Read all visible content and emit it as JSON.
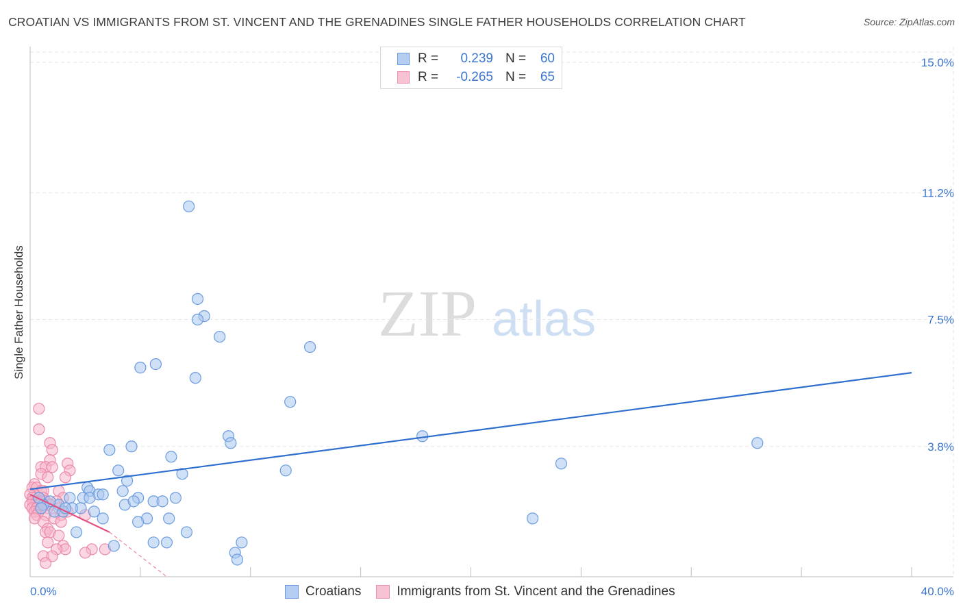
{
  "title": "CROATIAN VS IMMIGRANTS FROM ST. VINCENT AND THE GRENADINES SINGLE FATHER HOUSEHOLDS CORRELATION CHART",
  "source": "Source: ZipAtlas.com",
  "watermark": {
    "part1": "ZIP",
    "part2": "atlas"
  },
  "legend": {
    "rows": [
      {
        "r_label": "R =",
        "r_value": "0.239",
        "n_label": "N =",
        "n_value": "60"
      },
      {
        "r_label": "R =",
        "r_value": "-0.265",
        "n_label": "N =",
        "n_value": "65"
      }
    ]
  },
  "colors": {
    "blue_fill": "#a9c6ee",
    "blue_stroke": "#6a9be0",
    "blue_line": "#2e6fcf",
    "pink_fill": "#f6b7ca",
    "pink_stroke": "#ea88a8",
    "pink_line": "#e2507f",
    "grid": "#e6e6e6",
    "tick_text": "#3a74cf"
  },
  "chart_data": {
    "type": "scatter",
    "title": "CROATIAN VS IMMIGRANTS FROM ST. VINCENT AND THE GRENADINES SINGLE FATHER HOUSEHOLDS CORRELATION CHART",
    "xlabel": "",
    "ylabel": "Single Father Households",
    "xlim": [
      0,
      40
    ],
    "ylim": [
      0,
      15.3
    ],
    "x_tick_labels": [
      "0.0%",
      "40.0%"
    ],
    "y_ticks": [
      {
        "value": 3.8,
        "label": "3.8%"
      },
      {
        "value": 7.5,
        "label": "7.5%"
      },
      {
        "value": 11.2,
        "label": "11.2%"
      },
      {
        "value": 15.0,
        "label": "15.0%"
      }
    ],
    "series": [
      {
        "name": "Croatians",
        "color": "#a9c6ee",
        "r": 0.239,
        "n": 60,
        "trend": {
          "x0": 0,
          "y0": 2.55,
          "x1": 40,
          "y1": 5.95
        },
        "points": [
          [
            7.2,
            10.8
          ],
          [
            7.6,
            8.1
          ],
          [
            7.9,
            7.6
          ],
          [
            7.6,
            7.5
          ],
          [
            8.6,
            7.0
          ],
          [
            12.7,
            6.7
          ],
          [
            5.7,
            6.2
          ],
          [
            5.0,
            6.1
          ],
          [
            7.5,
            5.8
          ],
          [
            11.8,
            5.1
          ],
          [
            9.0,
            4.1
          ],
          [
            17.8,
            4.1
          ],
          [
            33.0,
            3.9
          ],
          [
            9.1,
            3.9
          ],
          [
            4.6,
            3.8
          ],
          [
            3.6,
            3.7
          ],
          [
            6.4,
            3.5
          ],
          [
            24.1,
            3.3
          ],
          [
            4.0,
            3.1
          ],
          [
            11.6,
            3.1
          ],
          [
            6.9,
            3.0
          ],
          [
            4.4,
            2.8
          ],
          [
            2.6,
            2.6
          ],
          [
            2.7,
            2.5
          ],
          [
            3.1,
            2.4
          ],
          [
            3.3,
            2.4
          ],
          [
            4.2,
            2.5
          ],
          [
            2.4,
            2.3
          ],
          [
            1.8,
            2.3
          ],
          [
            5.6,
            2.2
          ],
          [
            4.9,
            2.3
          ],
          [
            6.6,
            2.3
          ],
          [
            6.0,
            2.2
          ],
          [
            4.3,
            2.1
          ],
          [
            2.3,
            2.0
          ],
          [
            1.9,
            2.0
          ],
          [
            1.3,
            2.1
          ],
          [
            0.9,
            2.2
          ],
          [
            1.1,
            1.9
          ],
          [
            1.5,
            1.9
          ],
          [
            0.6,
            2.1
          ],
          [
            0.5,
            2.0
          ],
          [
            2.9,
            1.9
          ],
          [
            3.3,
            1.7
          ],
          [
            5.3,
            1.7
          ],
          [
            6.3,
            1.7
          ],
          [
            4.9,
            1.6
          ],
          [
            22.8,
            1.7
          ],
          [
            2.1,
            1.3
          ],
          [
            7.1,
            1.3
          ],
          [
            3.8,
            0.9
          ],
          [
            5.6,
            1.0
          ],
          [
            6.2,
            1.0
          ],
          [
            9.6,
            1.0
          ],
          [
            9.3,
            0.7
          ],
          [
            9.4,
            0.5
          ],
          [
            1.6,
            2.0
          ],
          [
            0.4,
            2.3
          ],
          [
            2.7,
            2.3
          ],
          [
            4.7,
            2.2
          ]
        ]
      },
      {
        "name": "Immigrants from St. Vincent and the Grenadines",
        "color": "#f6b7ca",
        "r": -0.265,
        "n": 65,
        "trend": {
          "x0": 0,
          "y0": 2.4,
          "x1": 3.6,
          "y1": 1.3
        },
        "trend_dashed": {
          "x0": 3.6,
          "y0": 1.3,
          "x1": 6.2,
          "y1": 0.0
        },
        "points": [
          [
            0.4,
            4.9
          ],
          [
            0.4,
            4.3
          ],
          [
            0.9,
            3.9
          ],
          [
            1.0,
            3.7
          ],
          [
            0.9,
            3.4
          ],
          [
            1.7,
            3.3
          ],
          [
            0.5,
            3.2
          ],
          [
            0.7,
            3.2
          ],
          [
            1.0,
            3.2
          ],
          [
            1.8,
            3.1
          ],
          [
            0.5,
            3.0
          ],
          [
            1.6,
            2.9
          ],
          [
            0.8,
            2.9
          ],
          [
            0.2,
            2.7
          ],
          [
            0.1,
            2.6
          ],
          [
            0.3,
            2.6
          ],
          [
            0.5,
            2.5
          ],
          [
            0.6,
            2.5
          ],
          [
            1.3,
            2.5
          ],
          [
            0.2,
            2.4
          ],
          [
            0.0,
            2.4
          ],
          [
            0.1,
            2.3
          ],
          [
            0.4,
            2.3
          ],
          [
            0.6,
            2.3
          ],
          [
            1.5,
            2.3
          ],
          [
            0.1,
            2.2
          ],
          [
            0.3,
            2.2
          ],
          [
            0.5,
            2.2
          ],
          [
            0.7,
            2.2
          ],
          [
            1.2,
            2.2
          ],
          [
            0.2,
            2.1
          ],
          [
            0.4,
            2.1
          ],
          [
            0.6,
            2.1
          ],
          [
            0.0,
            2.1
          ],
          [
            0.9,
            2.1
          ],
          [
            0.1,
            2.0
          ],
          [
            0.3,
            2.0
          ],
          [
            0.5,
            2.0
          ],
          [
            0.8,
            2.0
          ],
          [
            1.3,
            2.0
          ],
          [
            0.2,
            1.9
          ],
          [
            1.7,
            1.9
          ],
          [
            0.4,
            1.9
          ],
          [
            0.3,
            1.8
          ],
          [
            0.7,
            1.8
          ],
          [
            1.4,
            1.8
          ],
          [
            0.2,
            1.7
          ],
          [
            2.5,
            1.8
          ],
          [
            1.1,
            1.7
          ],
          [
            0.6,
            1.6
          ],
          [
            1.4,
            1.6
          ],
          [
            0.8,
            1.4
          ],
          [
            0.7,
            1.3
          ],
          [
            0.9,
            1.3
          ],
          [
            1.3,
            1.2
          ],
          [
            0.8,
            1.0
          ],
          [
            1.5,
            0.9
          ],
          [
            1.6,
            0.8
          ],
          [
            1.2,
            0.8
          ],
          [
            2.8,
            0.8
          ],
          [
            2.5,
            0.7
          ],
          [
            0.6,
            0.6
          ],
          [
            1.0,
            0.6
          ],
          [
            0.7,
            0.4
          ],
          [
            3.4,
            0.8
          ]
        ]
      }
    ]
  }
}
